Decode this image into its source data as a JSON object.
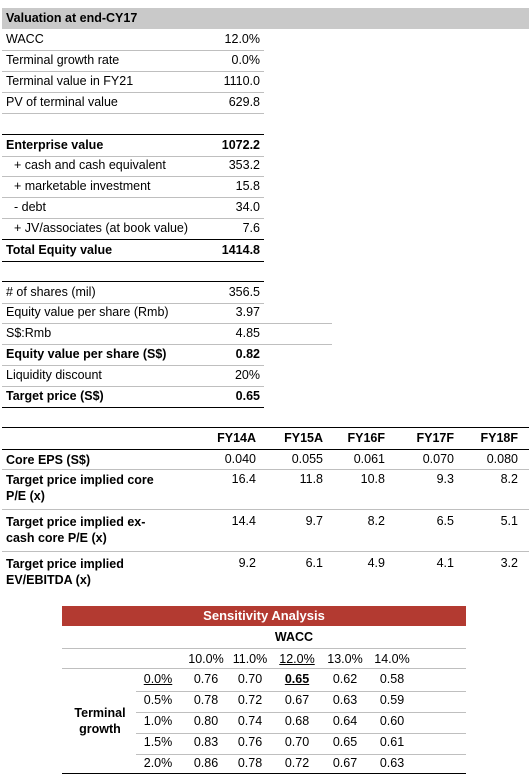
{
  "valuation": {
    "header": "Valuation at end-CY17",
    "rows": [
      {
        "label": "WACC",
        "value": "12.0%"
      },
      {
        "label": "Terminal growth rate",
        "value": "0.0%"
      },
      {
        "label": "Terminal value in FY21",
        "value": "1110.0"
      },
      {
        "label": "PV of terminal value",
        "value": "629.8"
      }
    ]
  },
  "equity_bridge": {
    "rows": [
      {
        "label": "Enterprise value",
        "value": "1072.2"
      },
      {
        "label": "+ cash and cash equivalent",
        "value": "353.2"
      },
      {
        "label": "+ marketable investment",
        "value": "15.8"
      },
      {
        "label": "- debt",
        "value": "34.0"
      },
      {
        "label": "+ JV/associates (at book value)",
        "value": "7.6"
      },
      {
        "label": "Total Equity value",
        "value": "1414.8"
      }
    ]
  },
  "per_share": {
    "rows": [
      {
        "label": "# of shares (mil)",
        "value": "356.5"
      },
      {
        "label": "Equity value per share (Rmb)",
        "value": "3.97"
      },
      {
        "label": "S$:Rmb",
        "value": "4.85"
      },
      {
        "label": "Equity value per share (S$)",
        "value": "0.82"
      },
      {
        "label": "Liquidity discount",
        "value": "20%"
      },
      {
        "label": "Target price (S$)",
        "value": "0.65"
      }
    ]
  },
  "multiples": {
    "years": [
      "FY14A",
      "FY15A",
      "FY16F",
      "FY17F",
      "FY18F"
    ],
    "rows": [
      {
        "label": "Core EPS (S$)",
        "values": [
          "0.040",
          "0.055",
          "0.061",
          "0.070",
          "0.080"
        ]
      },
      {
        "label": "Target price implied core P/E (x)",
        "values": [
          "16.4",
          "11.8",
          "10.8",
          "9.3",
          "8.2"
        ]
      },
      {
        "label": "Target price implied ex-cash core P/E (x)",
        "values": [
          "14.4",
          "9.7",
          "8.2",
          "6.5",
          "5.1"
        ]
      },
      {
        "label": "Target price implied EV/EBITDA (x)",
        "values": [
          "9.2",
          "6.1",
          "4.9",
          "4.1",
          "3.2"
        ]
      }
    ]
  },
  "sensitivity": {
    "title": "Sensitivity Analysis",
    "col_header": "WACC",
    "row_header_line1": "Terminal",
    "row_header_line2": "growth",
    "wacc": [
      "10.0%",
      "11.0%",
      "12.0%",
      "13.0%",
      "14.0%"
    ],
    "growth": [
      "0.0%",
      "0.5%",
      "1.0%",
      "1.5%",
      "2.0%"
    ],
    "grid": [
      [
        "0.76",
        "0.70",
        "0.65",
        "0.62",
        "0.58"
      ],
      [
        "0.78",
        "0.72",
        "0.67",
        "0.63",
        "0.59"
      ],
      [
        "0.80",
        "0.74",
        "0.68",
        "0.64",
        "0.60"
      ],
      [
        "0.83",
        "0.76",
        "0.70",
        "0.65",
        "0.61"
      ],
      [
        "0.86",
        "0.78",
        "0.72",
        "0.67",
        "0.63"
      ]
    ]
  },
  "colors": {
    "header_bg": "#c9c9c9",
    "sensitivity_bar": "#b33a31"
  }
}
